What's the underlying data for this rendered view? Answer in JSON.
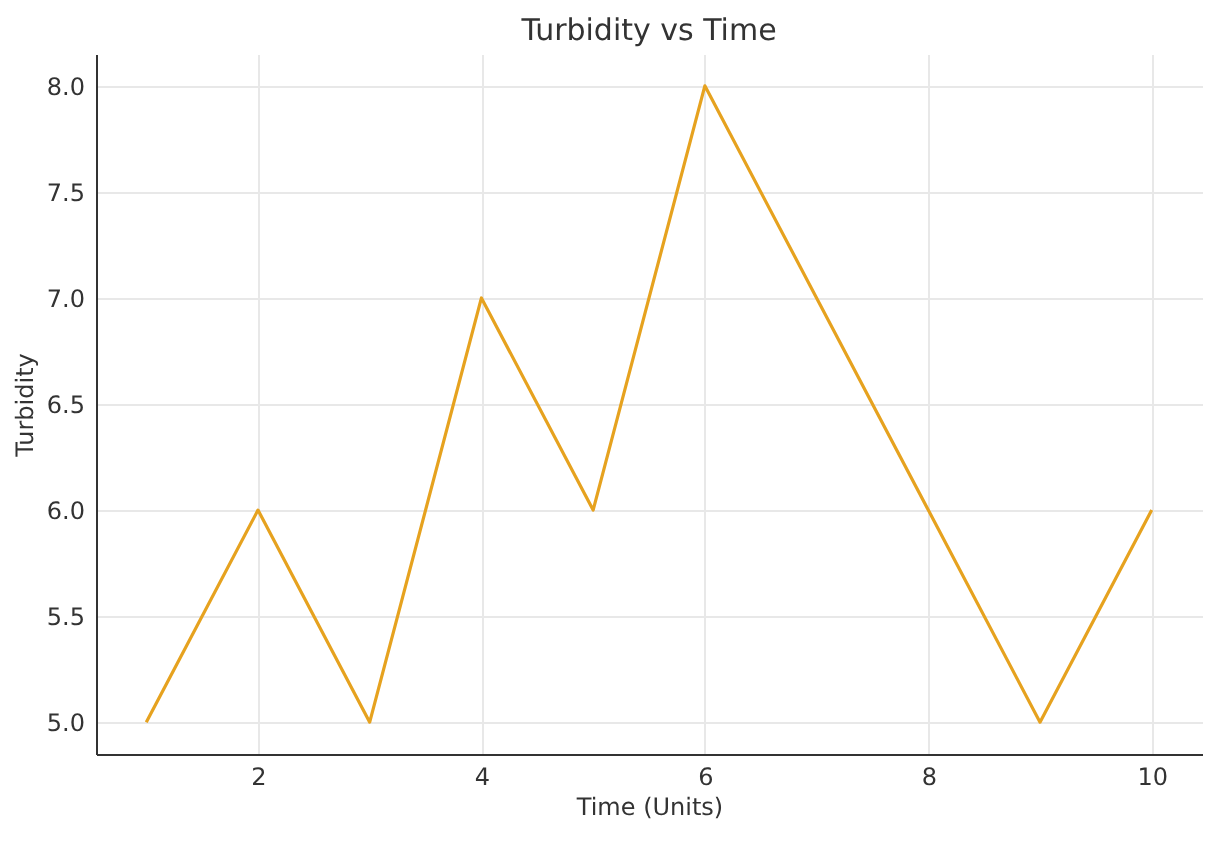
{
  "chart_data": {
    "type": "line",
    "title": "Turbidity vs Time",
    "xlabel": "Time (Units)",
    "ylabel": "Turbidity",
    "x": [
      1,
      2,
      3,
      4,
      5,
      6,
      7,
      8,
      9,
      10
    ],
    "series": [
      {
        "color": "#e6a21f",
        "values": [
          5,
          6,
          5,
          7,
          6,
          8,
          7,
          6,
          5,
          6
        ]
      }
    ],
    "xlim": [
      0.55,
      10.45
    ],
    "xticks": [
      2,
      4,
      6,
      8,
      10
    ],
    "ylim": [
      4.85,
      8.15
    ],
    "yticks": [
      {
        "value": 5,
        "label": "5.0"
      },
      {
        "value": 5.5,
        "label": "5.5"
      },
      {
        "value": 6,
        "label": "6.0"
      },
      {
        "value": 6.5,
        "label": "6.5"
      },
      {
        "value": 7,
        "label": "7.0"
      },
      {
        "value": 7.5,
        "label": "7.5"
      },
      {
        "value": 8,
        "label": "8.0"
      }
    ],
    "grid": true,
    "marker": "none",
    "line_style": "solid"
  }
}
